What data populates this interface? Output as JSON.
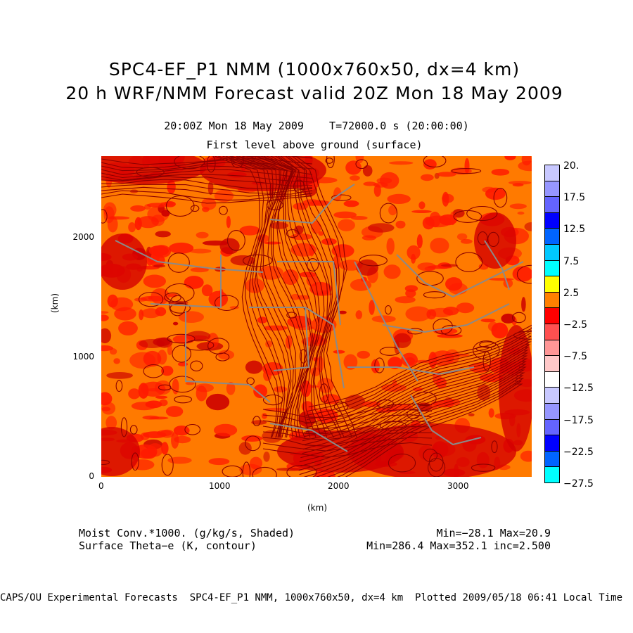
{
  "header": {
    "title_line1": "SPC4-EF_P1 NMM (1000x760x50, dx=4 km)",
    "title_line2": "20 h WRF/NMM Forecast valid 20Z Mon 18 May 2009",
    "valid_time": "20:00Z Mon 18 May 2009    T=72000.0 s (20:00:00)",
    "level": "First level above ground (surface)"
  },
  "axes": {
    "x_unit": "(km)",
    "y_unit": "(km)",
    "x_ticks": [
      "0",
      "1000",
      "2000",
      "3000"
    ],
    "y_ticks": [
      "0",
      "1000",
      "2000"
    ]
  },
  "colorbar": {
    "labels": [
      "20.",
      "17.5",
      "12.5",
      "7.5",
      "2.5",
      "−2.5",
      "−7.5",
      "−12.5",
      "−17.5",
      "−22.5",
      "−27.5"
    ],
    "colors": [
      "#c8c8ff",
      "#9696ff",
      "#6464ff",
      "#0000ff",
      "#0064ff",
      "#00c8ff",
      "#00ffff",
      "#ffff00",
      "#ff8000",
      "#ff0000",
      "#ff5050",
      "#ff9696",
      "#ffc8c8",
      "#ffffff",
      "#c8c8ff",
      "#9696ff",
      "#6464ff",
      "#0000ff",
      "#0064ff",
      "#00ffff"
    ]
  },
  "legend": {
    "shaded_field": "Moist Conv.*1000. (g/kg/s, Shaded)",
    "shaded_range": "Min=−28.1 Max=20.9",
    "contour_field": "Surface Theta−e (K, contour)",
    "contour_range": "Min=286.4 Max=352.1 inc=2.500"
  },
  "footer": {
    "credit": "CAPS/OU Experimental Forecasts  SPC4-EF_P1 NMM, 1000x760x50, dx=4 km  Plotted 2009/05/18 06:41 Local Time"
  },
  "map": {
    "background_color": "#ff7a00",
    "shade_red": "#ff1a00",
    "contour_color": "#8b0000",
    "boundary_color": "#8a8a8a"
  }
}
